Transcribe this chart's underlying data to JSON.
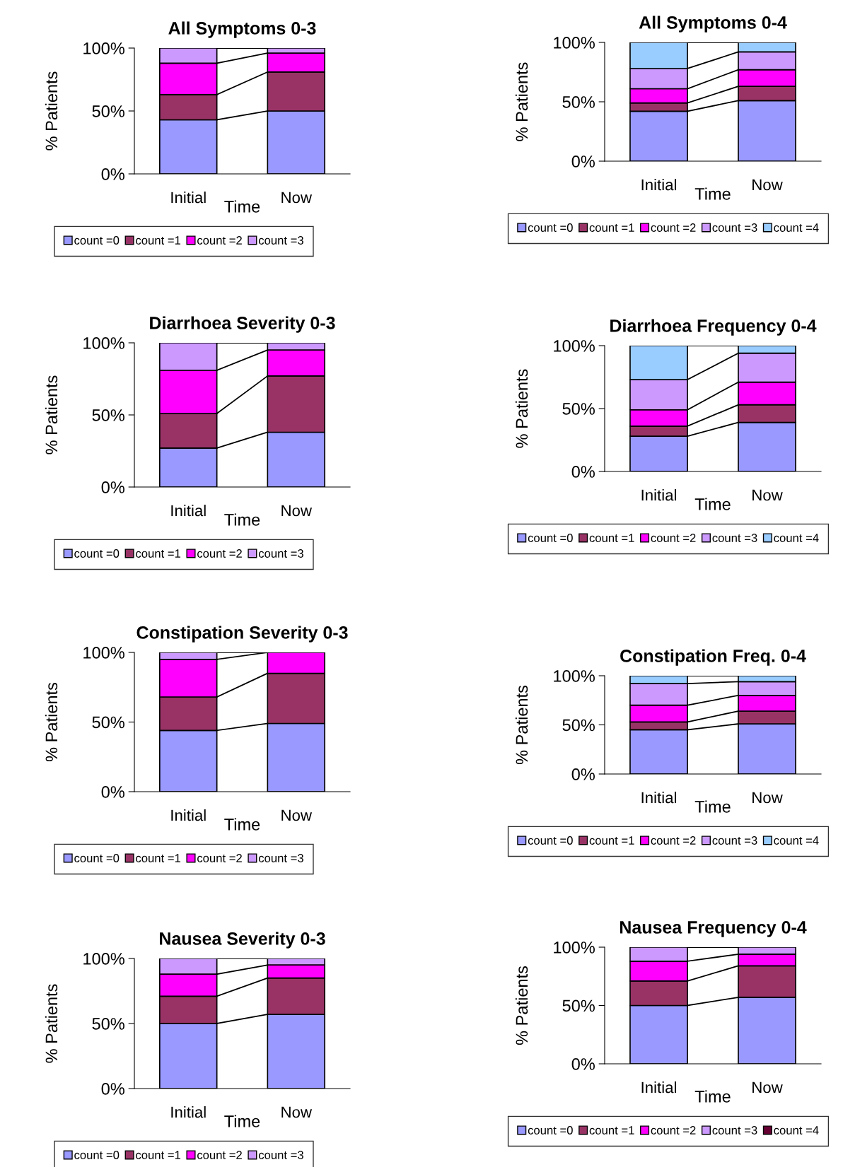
{
  "chart_data": [
    {
      "type": "bar",
      "stacked": true,
      "title": "All Symptoms 0-3",
      "xlabel": "Time",
      "ylabel": "% Patients",
      "categories": [
        "Initial",
        "Now"
      ],
      "ylim": [
        0,
        100
      ],
      "yticks": [
        {
          "value": 0,
          "label": "0%"
        },
        {
          "value": 50,
          "label": "50%"
        },
        {
          "value": 100,
          "label": "100%"
        }
      ],
      "legend": "bottom",
      "grid": false,
      "series": [
        {
          "name": "count =0",
          "color": "#9999ff",
          "values": [
            43,
            50
          ]
        },
        {
          "name": "count =1",
          "color": "#993366",
          "values": [
            20,
            31
          ]
        },
        {
          "name": "count =2",
          "color": "#ff00ff",
          "values": [
            25,
            15
          ]
        },
        {
          "name": "count =3",
          "color": "#cc99ff",
          "values": [
            12,
            4
          ]
        }
      ]
    },
    {
      "type": "bar",
      "stacked": true,
      "title": "All Symptoms 0-4",
      "xlabel": "Time",
      "ylabel": "% Patients",
      "categories": [
        "Initial",
        "Now"
      ],
      "ylim": [
        0,
        100
      ],
      "yticks": [
        {
          "value": 0,
          "label": "0%"
        },
        {
          "value": 50,
          "label": "50%"
        },
        {
          "value": 100,
          "label": "100%"
        }
      ],
      "legend": "bottom",
      "grid": false,
      "series": [
        {
          "name": "count =0",
          "color": "#9999ff",
          "values": [
            42,
            51
          ]
        },
        {
          "name": "count =1",
          "color": "#993366",
          "values": [
            7,
            12
          ]
        },
        {
          "name": "count =2",
          "color": "#ff00ff",
          "values": [
            12,
            14
          ]
        },
        {
          "name": "count =3",
          "color": "#cc99ff",
          "values": [
            17,
            15
          ]
        },
        {
          "name": "count =4",
          "color": "#99ccff",
          "values": [
            22,
            8
          ]
        }
      ]
    },
    {
      "type": "bar",
      "stacked": true,
      "title": "Diarrhoea Severity 0-3",
      "xlabel": "Time",
      "ylabel": "% Patients",
      "categories": [
        "Initial",
        "Now"
      ],
      "ylim": [
        0,
        100
      ],
      "yticks": [
        {
          "value": 0,
          "label": "0%"
        },
        {
          "value": 50,
          "label": "50%"
        },
        {
          "value": 100,
          "label": "100%"
        }
      ],
      "legend": "bottom",
      "grid": false,
      "series": [
        {
          "name": "count =0",
          "color": "#9999ff",
          "values": [
            27,
            38
          ]
        },
        {
          "name": "count =1",
          "color": "#993366",
          "values": [
            24,
            39
          ]
        },
        {
          "name": "count =2",
          "color": "#ff00ff",
          "values": [
            30,
            18
          ]
        },
        {
          "name": "count =3",
          "color": "#cc99ff",
          "values": [
            19,
            5
          ]
        }
      ]
    },
    {
      "type": "bar",
      "stacked": true,
      "title": "Diarrhoea Frequency 0-4",
      "xlabel": "Time",
      "ylabel": "% Patients",
      "categories": [
        "Initial",
        "Now"
      ],
      "ylim": [
        0,
        100
      ],
      "yticks": [
        {
          "value": 0,
          "label": "0%"
        },
        {
          "value": 50,
          "label": "50%"
        },
        {
          "value": 100,
          "label": "100%"
        }
      ],
      "legend": "bottom",
      "grid": false,
      "series": [
        {
          "name": "count =0",
          "color": "#9999ff",
          "values": [
            28,
            39
          ]
        },
        {
          "name": "count =1",
          "color": "#993366",
          "values": [
            8,
            14
          ]
        },
        {
          "name": "count =2",
          "color": "#ff00ff",
          "values": [
            13,
            18
          ]
        },
        {
          "name": "count =3",
          "color": "#cc99ff",
          "values": [
            24,
            23
          ]
        },
        {
          "name": "count =4",
          "color": "#99ccff",
          "values": [
            27,
            6
          ]
        }
      ]
    },
    {
      "type": "bar",
      "stacked": true,
      "title": "Constipation Severity 0-3",
      "xlabel": "Time",
      "ylabel": "% Patients",
      "categories": [
        "Initial",
        "Now"
      ],
      "ylim": [
        0,
        100
      ],
      "yticks": [
        {
          "value": 0,
          "label": "0%"
        },
        {
          "value": 50,
          "label": "50%"
        },
        {
          "value": 100,
          "label": "100%"
        }
      ],
      "legend": "bottom",
      "grid": false,
      "series": [
        {
          "name": "count =0",
          "color": "#9999ff",
          "values": [
            44,
            49
          ]
        },
        {
          "name": "count =1",
          "color": "#993366",
          "values": [
            24,
            36
          ]
        },
        {
          "name": "count =2",
          "color": "#ff00ff",
          "values": [
            27,
            15
          ]
        },
        {
          "name": "count =3",
          "color": "#cc99ff",
          "values": [
            5,
            0
          ]
        }
      ]
    },
    {
      "type": "bar",
      "stacked": true,
      "title": "Constipation Freq. 0-4",
      "xlabel": "Time",
      "ylabel": "% Patients",
      "categories": [
        "Initial",
        "Now"
      ],
      "ylim": [
        0,
        100
      ],
      "yticks": [
        {
          "value": 0,
          "label": "0%"
        },
        {
          "value": 50,
          "label": "50%"
        },
        {
          "value": 100,
          "label": "100%"
        }
      ],
      "legend": "bottom",
      "grid": false,
      "series": [
        {
          "name": "count =0",
          "color": "#9999ff",
          "values": [
            45,
            51
          ]
        },
        {
          "name": "count =1",
          "color": "#993366",
          "values": [
            8,
            13
          ]
        },
        {
          "name": "count =2",
          "color": "#ff00ff",
          "values": [
            17,
            16
          ]
        },
        {
          "name": "count =3",
          "color": "#cc99ff",
          "values": [
            22,
            14
          ]
        },
        {
          "name": "count =4",
          "color": "#99ccff",
          "values": [
            8,
            6
          ]
        }
      ]
    },
    {
      "type": "bar",
      "stacked": true,
      "title": "Nausea Severity 0-3",
      "xlabel": "Time",
      "ylabel": "% Patients",
      "categories": [
        "Initial",
        "Now"
      ],
      "ylim": [
        0,
        100
      ],
      "yticks": [
        {
          "value": 0,
          "label": "0%"
        },
        {
          "value": 50,
          "label": "50%"
        },
        {
          "value": 100,
          "label": "100%"
        }
      ],
      "legend": "bottom",
      "grid": false,
      "series": [
        {
          "name": "count =0",
          "color": "#9999ff",
          "values": [
            50,
            57
          ]
        },
        {
          "name": "count =1",
          "color": "#993366",
          "values": [
            21,
            28
          ]
        },
        {
          "name": "count =2",
          "color": "#ff00ff",
          "values": [
            17,
            10
          ]
        },
        {
          "name": "count =3",
          "color": "#cc99ff",
          "values": [
            12,
            5
          ]
        }
      ]
    },
    {
      "type": "bar",
      "stacked": true,
      "title": "Nausea Frequency 0-4",
      "xlabel": "Time",
      "ylabel": "% Patients",
      "categories": [
        "Initial",
        "Now"
      ],
      "ylim": [
        0,
        100
      ],
      "yticks": [
        {
          "value": 0,
          "label": "0%"
        },
        {
          "value": 50,
          "label": "50%"
        },
        {
          "value": 100,
          "label": "100%"
        }
      ],
      "legend": "bottom",
      "grid": false,
      "series": [
        {
          "name": "count =0",
          "color": "#9999ff",
          "values": [
            50,
            57
          ]
        },
        {
          "name": "count =1",
          "color": "#993366",
          "values": [
            21,
            27
          ]
        },
        {
          "name": "count =2",
          "color": "#ff00ff",
          "values": [
            17,
            10
          ]
        },
        {
          "name": "count =3",
          "color": "#cc99ff",
          "values": [
            12,
            6
          ]
        },
        {
          "name": "count =4",
          "color": "#660033",
          "values": [
            0,
            0
          ]
        }
      ]
    }
  ]
}
